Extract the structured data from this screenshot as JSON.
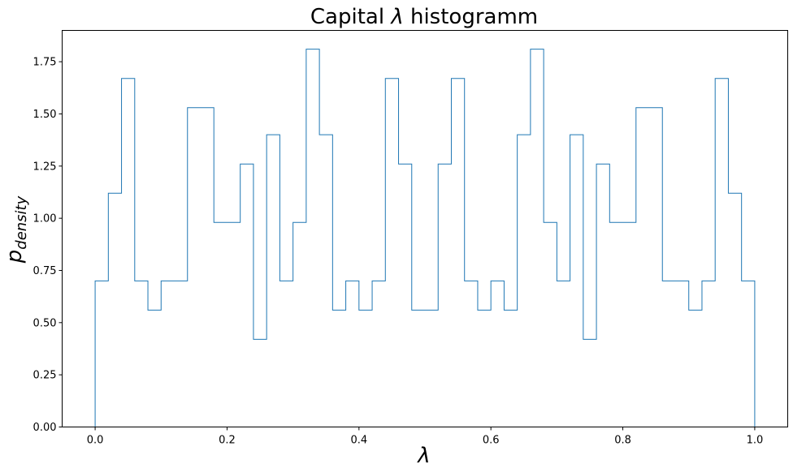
{
  "chart_data": {
    "type": "bar",
    "histtype": "step",
    "title_prefix": "Capital ",
    "title_symbol": "λ",
    "title_suffix": " histogramm",
    "xlabel": "λ",
    "ylabel_main": "p",
    "ylabel_sub": "density",
    "xlim": [
      -0.05,
      1.05
    ],
    "ylim": [
      0,
      1.9
    ],
    "x_ticks": [
      0.0,
      0.2,
      0.4,
      0.6,
      0.8,
      1.0
    ],
    "x_tick_labels": [
      "0.0",
      "0.2",
      "0.4",
      "0.6",
      "0.8",
      "1.0"
    ],
    "y_ticks": [
      0.0,
      0.25,
      0.5,
      0.75,
      1.0,
      1.25,
      1.5,
      1.75
    ],
    "y_tick_labels": [
      "0.00",
      "0.25",
      "0.50",
      "0.75",
      "1.00",
      "1.25",
      "1.50",
      "1.75"
    ],
    "bin_edges": [
      0.0,
      0.02,
      0.04,
      0.06,
      0.08,
      0.1,
      0.12,
      0.14,
      0.16,
      0.18,
      0.2,
      0.22,
      0.24,
      0.26,
      0.28,
      0.3,
      0.32,
      0.34,
      0.36,
      0.38,
      0.4,
      0.42,
      0.44,
      0.46,
      0.48,
      0.5,
      0.52,
      0.54,
      0.56,
      0.58,
      0.6,
      0.62,
      0.64,
      0.66,
      0.68,
      0.7,
      0.72,
      0.74,
      0.76,
      0.78,
      0.8,
      0.82,
      0.84,
      0.86,
      0.88,
      0.9,
      0.92,
      0.94,
      0.96,
      0.98,
      1.0
    ],
    "values": [
      0.7,
      1.12,
      1.67,
      0.7,
      0.56,
      0.7,
      0.7,
      1.53,
      1.53,
      0.98,
      0.98,
      1.26,
      0.42,
      1.4,
      0.7,
      0.98,
      1.81,
      1.4,
      0.56,
      0.7,
      0.56,
      0.7,
      1.67,
      1.26,
      0.56,
      0.56,
      1.26,
      1.67,
      0.7,
      0.56,
      0.7,
      0.56,
      1.4,
      1.81,
      0.98,
      0.7,
      1.4,
      0.42,
      1.26,
      0.98,
      0.98,
      1.53,
      1.53,
      0.7,
      0.7,
      0.56,
      0.7,
      1.67,
      1.12,
      0.7
    ],
    "line_color": "#1f77b4",
    "grid": false
  }
}
